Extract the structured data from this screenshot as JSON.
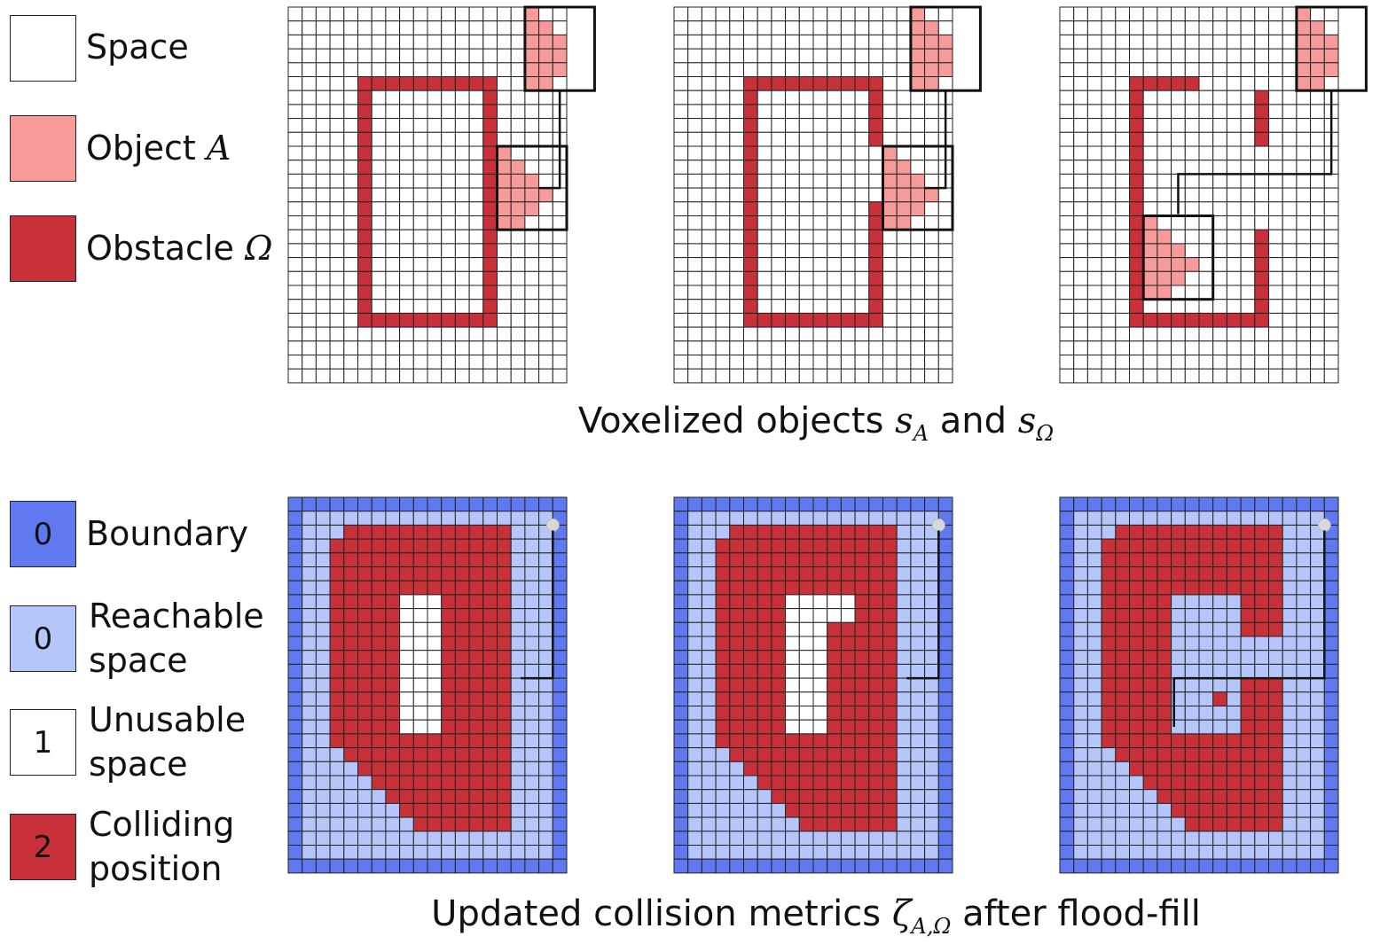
{
  "colors": {
    "space": "#ffffff",
    "object_a": "#f79a9a",
    "obstacle": "#c8313a",
    "boundary": "#6078f0",
    "reachable": "#b4c6fa",
    "unusable": "#ffffff",
    "colliding": "#c8313a",
    "grid_line": "#222222"
  },
  "legend_top": [
    {
      "text": "Space",
      "math": ""
    },
    {
      "text": "Object ",
      "math": "A"
    },
    {
      "text": "Obstacle ",
      "math": "Ω"
    }
  ],
  "legend_bottom": [
    {
      "value": "0",
      "lines": [
        "Boundary"
      ]
    },
    {
      "value": "0",
      "lines": [
        "Reachable",
        "space"
      ]
    },
    {
      "value": "1",
      "lines": [
        "Unusable",
        "space"
      ]
    },
    {
      "value": "2",
      "lines": [
        "Colliding",
        "position"
      ]
    }
  ],
  "captions": {
    "top_text": "Voxelized objects ",
    "top_s": "s",
    "top_sub_a": "A",
    "top_and": " and ",
    "top_sub_omega": "Ω",
    "bottom_text": "Updated collision metrics ",
    "bottom_zeta": "ζ",
    "bottom_sub": "A,Ω",
    "bottom_after": " after flood-fill"
  },
  "grid": {
    "cols": 20,
    "rows": 27
  },
  "top_panels": [
    {
      "obstacle_gap_right": 0,
      "obstacle_gap_left": 0,
      "object_row": 10,
      "object_col": 15
    },
    {
      "obstacle_gap_right": 1,
      "obstacle_gap_left": 0,
      "object_row": 10,
      "object_col": 15
    },
    {
      "obstacle_gap_right": 2,
      "obstacle_gap_left": 0,
      "object_row": 15,
      "object_col": 6
    }
  ],
  "bottom_panels": [
    {
      "variant": 0
    },
    {
      "variant": 1
    },
    {
      "variant": 2
    }
  ]
}
